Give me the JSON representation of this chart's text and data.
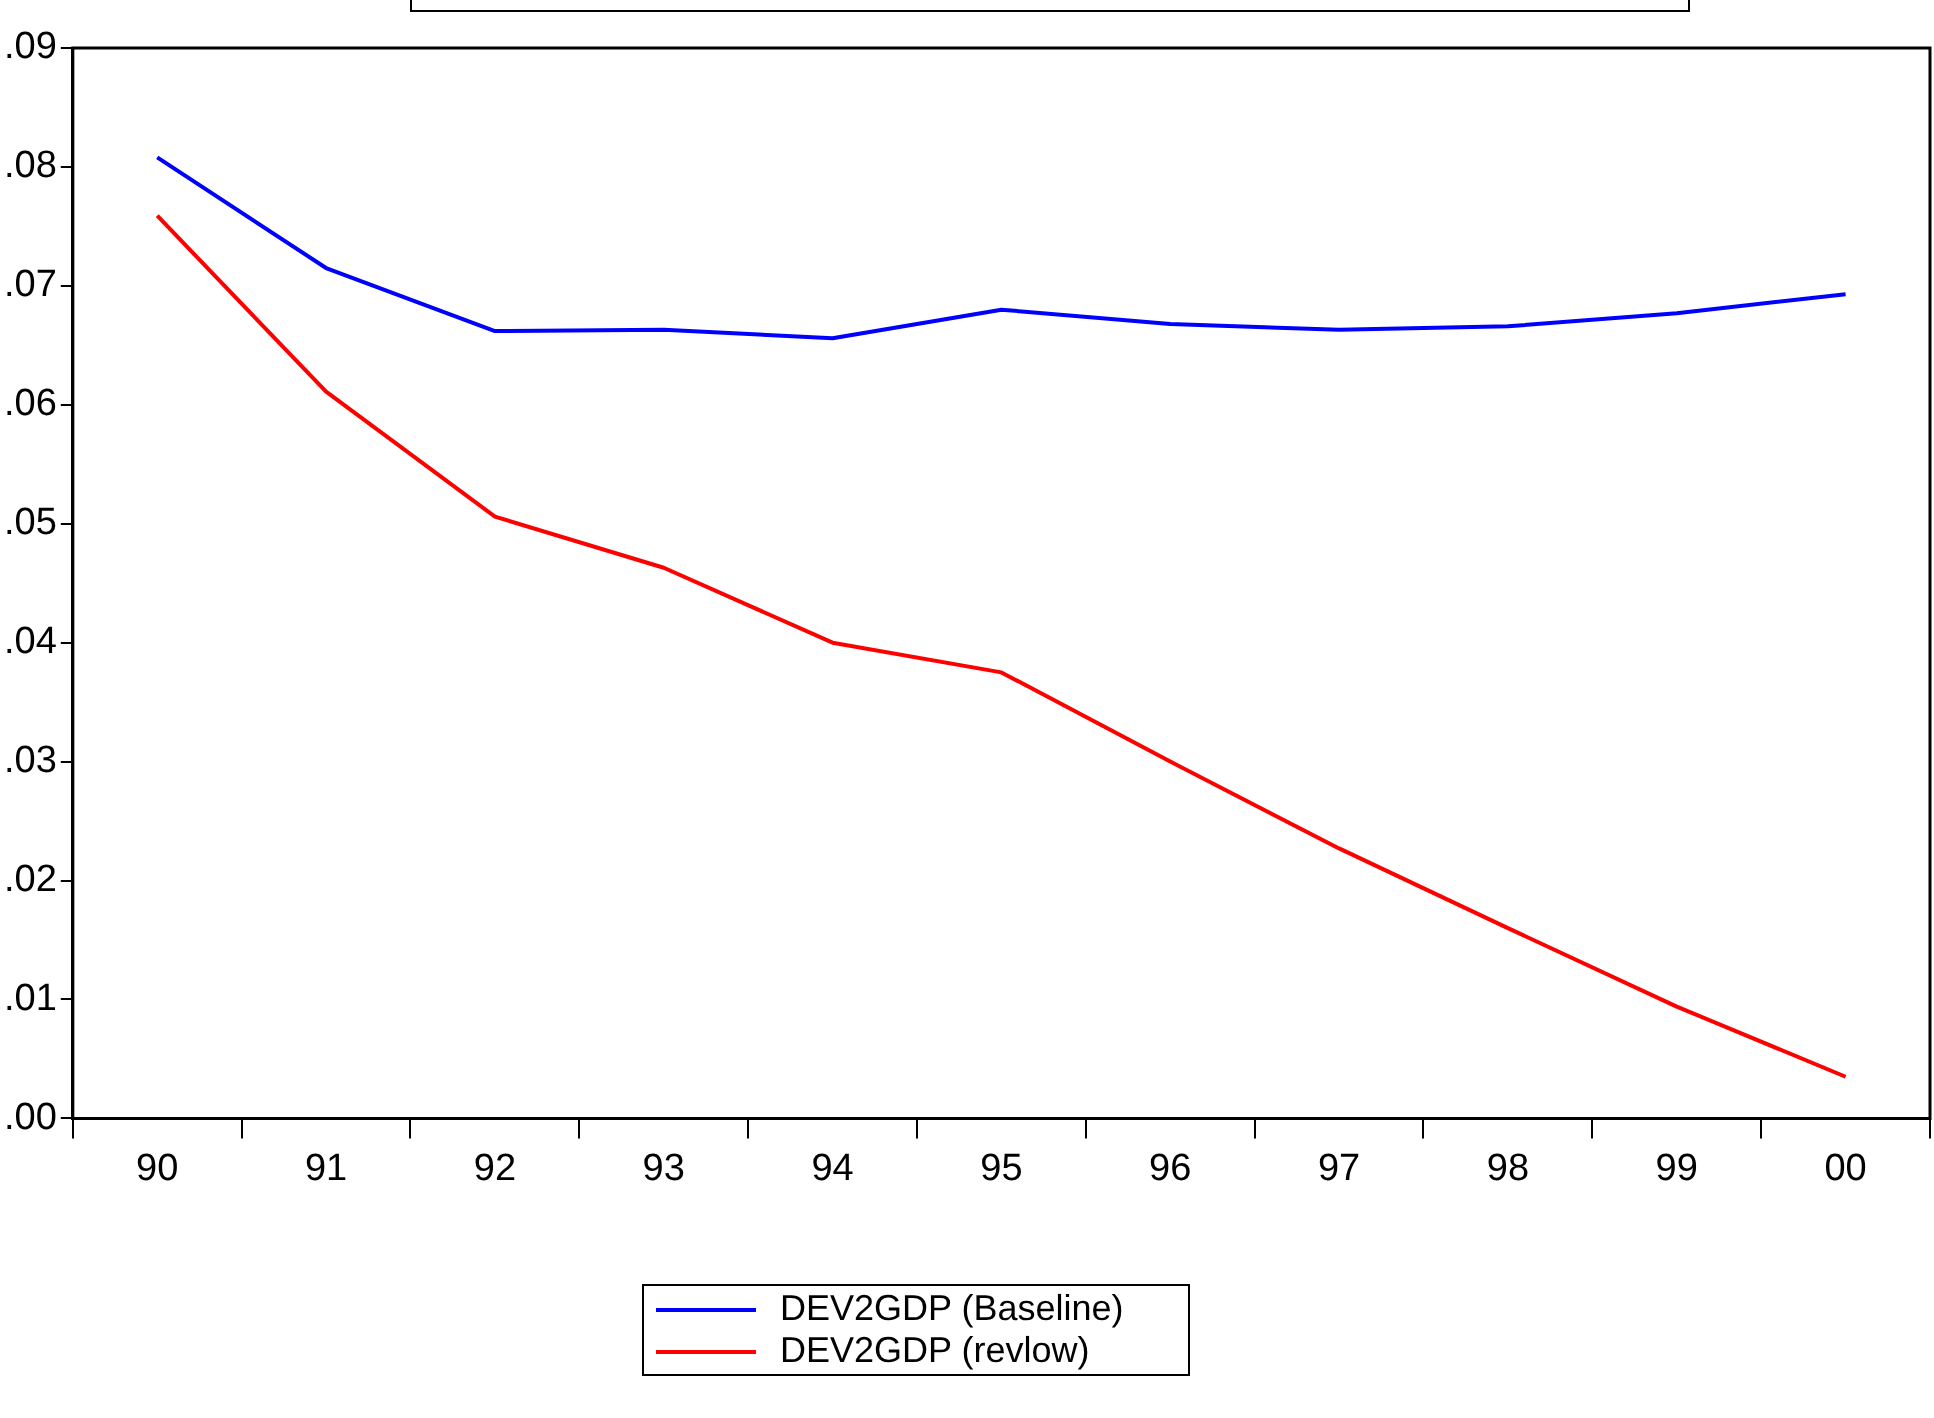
{
  "chart_data": {
    "type": "line",
    "categories": [
      "90",
      "91",
      "92",
      "93",
      "94",
      "95",
      "96",
      "97",
      "98",
      "99",
      "00"
    ],
    "series": [
      {
        "name": "DEV2GDP (Baseline)",
        "color": "#0000ff",
        "values": [
          0.0808,
          0.0715,
          0.0662,
          0.0663,
          0.0656,
          0.068,
          0.0668,
          0.0663,
          0.0666,
          0.0677,
          0.0693
        ]
      },
      {
        "name": "DEV2GDP (revlow)",
        "color": "#ff0000",
        "values": [
          0.0759,
          0.0611,
          0.0506,
          0.0463,
          0.04,
          0.0375,
          0.03,
          0.0227,
          0.016,
          0.0094,
          0.0035
        ]
      }
    ],
    "ylim": [
      0,
      0.09
    ],
    "yticks": [
      {
        "value": 0,
        "label": ".00"
      },
      {
        "value": 0.01,
        "label": ".01"
      },
      {
        "value": 0.02,
        "label": ".02"
      },
      {
        "value": 0.03,
        "label": ".03"
      },
      {
        "value": 0.04,
        "label": ".04"
      },
      {
        "value": 0.05,
        "label": ".05"
      },
      {
        "value": 0.06,
        "label": ".06"
      },
      {
        "value": 0.07,
        "label": ".07"
      },
      {
        "value": 0.08,
        "label": ".08"
      },
      {
        "value": 0.09,
        "label": ".09"
      }
    ],
    "legend": "bottom",
    "marker": "none",
    "line_style": "solid"
  }
}
